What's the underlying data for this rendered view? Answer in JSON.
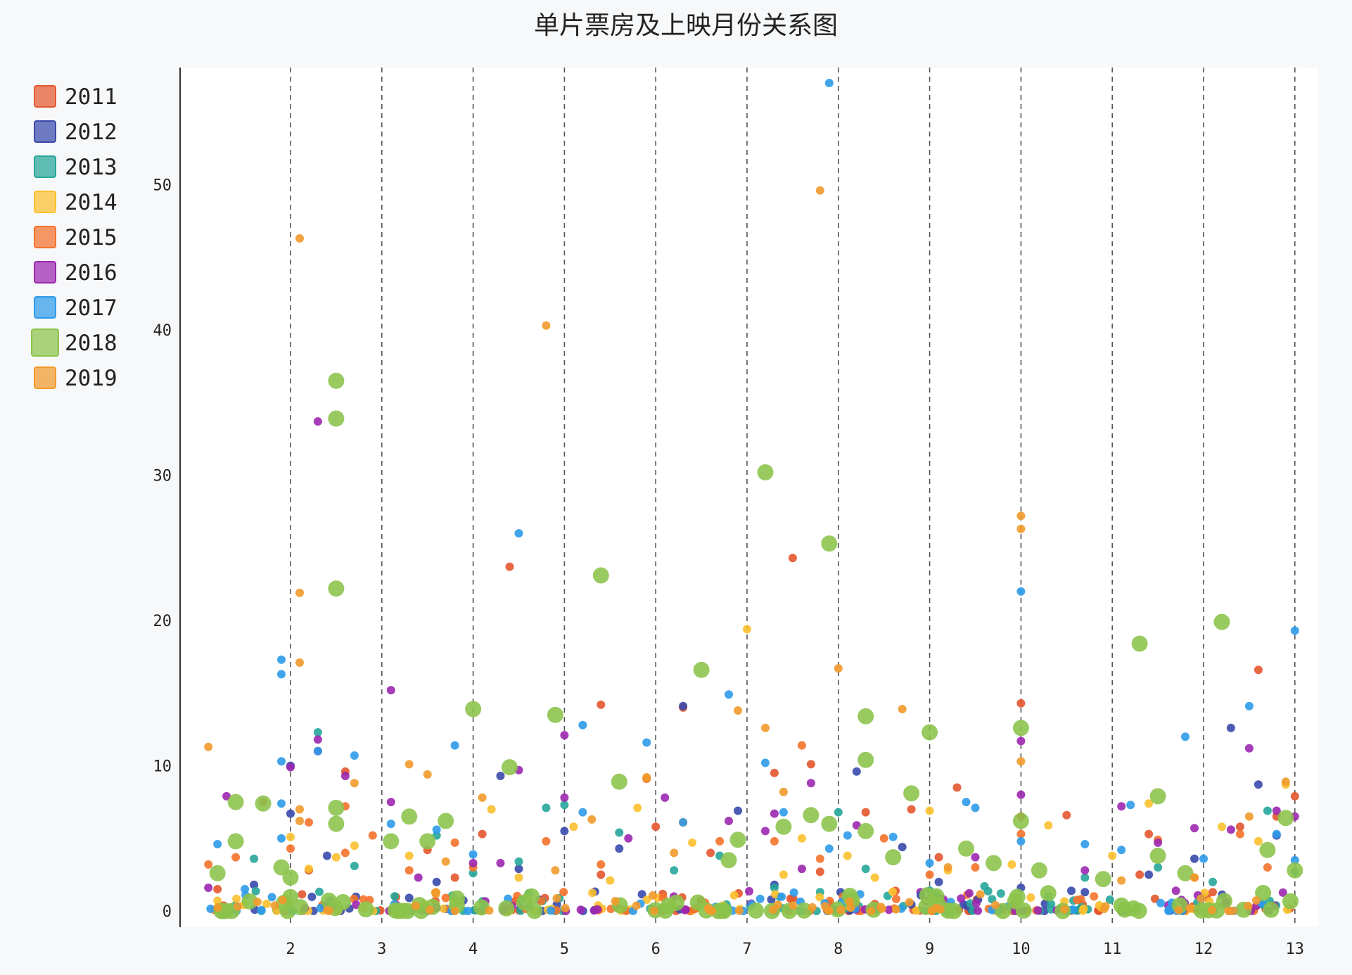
{
  "chart_data": {
    "type": "scatter",
    "title": "单片票房及上映月份关系图",
    "xlabel": "",
    "ylabel": "",
    "xlim": [
      1,
      13.1
    ],
    "ylim": [
      0,
      57.5
    ],
    "x_ticks": [
      2,
      3,
      4,
      5,
      6,
      7,
      8,
      9,
      10,
      11,
      12,
      13
    ],
    "y_ticks": [
      0,
      10,
      20,
      30,
      40,
      50
    ],
    "grid": "vertical dashed",
    "legend_position": "top-left",
    "legend": [
      "2011",
      "2012",
      "2013",
      "2014",
      "2015",
      "2016",
      "2017",
      "2018",
      "2019"
    ],
    "series": [
      {
        "name": "2011",
        "color": "#e4572e",
        "points": [
          [
            1.2,
            1.5
          ],
          [
            1.7,
            7.5
          ],
          [
            2.2,
            2.8
          ],
          [
            2.6,
            9.6
          ],
          [
            3.5,
            4.2
          ],
          [
            3.8,
            2.3
          ],
          [
            4.1,
            5.3
          ],
          [
            4.4,
            23.7
          ],
          [
            5.4,
            2.5
          ],
          [
            5.4,
            14.2
          ],
          [
            6.0,
            5.8
          ],
          [
            6.3,
            14.0
          ],
          [
            6.6,
            4.0
          ],
          [
            7.3,
            9.5
          ],
          [
            7.5,
            24.3
          ],
          [
            7.7,
            10.1
          ],
          [
            7.8,
            2.7
          ],
          [
            8.3,
            6.8
          ],
          [
            8.8,
            7.0
          ],
          [
            9.1,
            3.7
          ],
          [
            9.3,
            8.5
          ],
          [
            10.0,
            14.3
          ],
          [
            10.0,
            6.5
          ],
          [
            10.5,
            6.6
          ],
          [
            11.3,
            2.5
          ],
          [
            11.4,
            5.3
          ],
          [
            12.1,
            1.3
          ],
          [
            12.4,
            5.8
          ],
          [
            12.6,
            16.6
          ],
          [
            12.8,
            6.5
          ],
          [
            13.0,
            7.9
          ]
        ]
      },
      {
        "name": "2012",
        "color": "#3949ab",
        "points": [
          [
            1.6,
            1.8
          ],
          [
            2.0,
            10.0
          ],
          [
            2.0,
            6.7
          ],
          [
            2.4,
            3.8
          ],
          [
            3.3,
            0.9
          ],
          [
            3.6,
            2.0
          ],
          [
            4.3,
            9.3
          ],
          [
            4.5,
            2.9
          ],
          [
            5.0,
            5.5
          ],
          [
            5.6,
            4.3
          ],
          [
            6.3,
            14.1
          ],
          [
            6.9,
            6.9
          ],
          [
            7.3,
            1.8
          ],
          [
            8.2,
            9.6
          ],
          [
            8.7,
            4.4
          ],
          [
            9.1,
            2.0
          ],
          [
            10.0,
            1.6
          ],
          [
            10.7,
            1.3
          ],
          [
            11.4,
            2.5
          ],
          [
            11.9,
            3.6
          ],
          [
            12.3,
            12.6
          ],
          [
            12.6,
            8.7
          ],
          [
            12.8,
            5.2
          ]
        ]
      },
      {
        "name": "2013",
        "color": "#26a69a",
        "points": [
          [
            1.6,
            3.6
          ],
          [
            2.3,
            12.3
          ],
          [
            2.7,
            3.1
          ],
          [
            3.6,
            5.2
          ],
          [
            4.0,
            2.6
          ],
          [
            4.5,
            3.4
          ],
          [
            4.8,
            7.1
          ],
          [
            5.0,
            7.3
          ],
          [
            5.6,
            5.4
          ],
          [
            6.2,
            2.8
          ],
          [
            6.7,
            3.8
          ],
          [
            7.3,
            1.6
          ],
          [
            7.8,
            1.3
          ],
          [
            8.0,
            6.8
          ],
          [
            8.3,
            2.9
          ],
          [
            9.0,
            1.4
          ],
          [
            9.6,
            1.7
          ],
          [
            10.3,
            1.0
          ],
          [
            10.7,
            2.3
          ],
          [
            11.5,
            3.0
          ],
          [
            12.1,
            2.0
          ],
          [
            12.7,
            6.9
          ],
          [
            13.0,
            2.7
          ]
        ]
      },
      {
        "name": "2014",
        "color": "#fbc02d",
        "points": [
          [
            1.2,
            0.7
          ],
          [
            2.0,
            5.1
          ],
          [
            2.2,
            2.9
          ],
          [
            2.5,
            3.7
          ],
          [
            2.7,
            4.5
          ],
          [
            3.3,
            3.8
          ],
          [
            4.2,
            7.0
          ],
          [
            4.5,
            2.3
          ],
          [
            5.1,
            5.8
          ],
          [
            5.5,
            2.1
          ],
          [
            5.8,
            7.1
          ],
          [
            6.4,
            4.7
          ],
          [
            7.0,
            19.4
          ],
          [
            7.4,
            2.5
          ],
          [
            7.6,
            5.0
          ],
          [
            8.1,
            3.8
          ],
          [
            8.4,
            2.3
          ],
          [
            9.0,
            6.9
          ],
          [
            9.2,
            2.8
          ],
          [
            9.9,
            3.2
          ],
          [
            10.3,
            5.9
          ],
          [
            11.0,
            3.8
          ],
          [
            11.4,
            7.4
          ],
          [
            12.2,
            5.8
          ],
          [
            12.6,
            4.8
          ],
          [
            12.9,
            8.7
          ]
        ]
      },
      {
        "name": "2015",
        "color": "#f4722b",
        "points": [
          [
            1.1,
            3.2
          ],
          [
            1.4,
            3.7
          ],
          [
            2.0,
            4.3
          ],
          [
            2.2,
            6.1
          ],
          [
            2.6,
            7.2
          ],
          [
            2.6,
            4.0
          ],
          [
            2.9,
            5.2
          ],
          [
            3.3,
            2.8
          ],
          [
            3.8,
            4.7
          ],
          [
            4.0,
            3.0
          ],
          [
            4.8,
            4.8
          ],
          [
            5.4,
            3.2
          ],
          [
            5.9,
            9.1
          ],
          [
            6.3,
            6.1
          ],
          [
            6.7,
            4.8
          ],
          [
            7.3,
            4.8
          ],
          [
            7.6,
            11.4
          ],
          [
            7.8,
            3.6
          ],
          [
            8.5,
            5.0
          ],
          [
            9.0,
            2.5
          ],
          [
            9.5,
            3.0
          ],
          [
            10.0,
            5.3
          ],
          [
            10.8,
            1.0
          ],
          [
            11.5,
            4.9
          ],
          [
            11.9,
            2.3
          ],
          [
            12.4,
            5.3
          ],
          [
            12.7,
            3.0
          ]
        ]
      },
      {
        "name": "2016",
        "color": "#9c27b0",
        "points": [
          [
            1.1,
            1.6
          ],
          [
            1.3,
            7.9
          ],
          [
            2.0,
            9.9
          ],
          [
            2.3,
            33.7
          ],
          [
            2.3,
            11.8
          ],
          [
            2.3,
            11.0
          ],
          [
            2.6,
            9.3
          ],
          [
            3.1,
            15.2
          ],
          [
            3.1,
            7.5
          ],
          [
            3.4,
            2.3
          ],
          [
            4.0,
            3.3
          ],
          [
            4.3,
            3.3
          ],
          [
            4.5,
            9.7
          ],
          [
            5.0,
            12.1
          ],
          [
            5.0,
            7.8
          ],
          [
            5.7,
            5.0
          ],
          [
            6.1,
            7.8
          ],
          [
            6.8,
            6.2
          ],
          [
            7.2,
            5.5
          ],
          [
            7.3,
            6.7
          ],
          [
            7.6,
            2.9
          ],
          [
            7.7,
            8.8
          ],
          [
            8.2,
            5.9
          ],
          [
            8.9,
            1.3
          ],
          [
            9.5,
            3.7
          ],
          [
            10.0,
            11.7
          ],
          [
            10.0,
            8.0
          ],
          [
            10.7,
            2.8
          ],
          [
            11.1,
            7.2
          ],
          [
            11.5,
            4.7
          ],
          [
            11.9,
            5.7
          ],
          [
            12.3,
            5.6
          ],
          [
            12.5,
            11.2
          ],
          [
            12.8,
            6.9
          ],
          [
            13.0,
            6.5
          ]
        ]
      },
      {
        "name": "2017",
        "color": "#2e9bea",
        "points": [
          [
            1.2,
            4.6
          ],
          [
            1.5,
            1.5
          ],
          [
            1.9,
            17.3
          ],
          [
            1.9,
            16.3
          ],
          [
            1.9,
            10.3
          ],
          [
            1.9,
            7.4
          ],
          [
            1.9,
            5.0
          ],
          [
            2.3,
            11.0
          ],
          [
            2.7,
            10.7
          ],
          [
            3.1,
            6.0
          ],
          [
            3.6,
            5.6
          ],
          [
            3.8,
            11.4
          ],
          [
            4.0,
            3.9
          ],
          [
            4.5,
            26.0
          ],
          [
            5.2,
            12.8
          ],
          [
            5.2,
            6.8
          ],
          [
            5.9,
            11.6
          ],
          [
            6.3,
            6.1
          ],
          [
            6.8,
            14.9
          ],
          [
            7.2,
            10.2
          ],
          [
            7.4,
            6.8
          ],
          [
            7.9,
            57.0
          ],
          [
            7.9,
            4.3
          ],
          [
            8.1,
            5.2
          ],
          [
            8.6,
            5.1
          ],
          [
            9.0,
            3.3
          ],
          [
            9.4,
            7.5
          ],
          [
            9.5,
            7.1
          ],
          [
            10.0,
            22.0
          ],
          [
            10.0,
            4.8
          ],
          [
            10.7,
            4.6
          ],
          [
            11.1,
            4.2
          ],
          [
            11.2,
            7.3
          ],
          [
            11.8,
            12.0
          ],
          [
            12.0,
            3.6
          ],
          [
            12.5,
            14.1
          ],
          [
            12.8,
            5.3
          ],
          [
            13.0,
            19.3
          ],
          [
            13.0,
            3.5
          ]
        ]
      },
      {
        "name": "2018",
        "color": "#8bc34a",
        "points": [
          [
            1.2,
            2.6
          ],
          [
            1.4,
            4.8
          ],
          [
            1.4,
            7.5
          ],
          [
            1.7,
            7.4
          ],
          [
            1.9,
            3.0
          ],
          [
            2.0,
            2.3
          ],
          [
            2.5,
            36.5
          ],
          [
            2.5,
            33.9
          ],
          [
            2.5,
            22.2
          ],
          [
            2.5,
            7.1
          ],
          [
            2.5,
            6.0
          ],
          [
            3.1,
            4.8
          ],
          [
            3.3,
            6.5
          ],
          [
            3.5,
            4.8
          ],
          [
            3.7,
            6.2
          ],
          [
            4.0,
            13.9
          ],
          [
            4.4,
            9.9
          ],
          [
            4.9,
            13.5
          ],
          [
            5.4,
            23.1
          ],
          [
            5.6,
            8.9
          ],
          [
            6.5,
            16.6
          ],
          [
            6.8,
            3.5
          ],
          [
            6.9,
            4.9
          ],
          [
            7.2,
            30.2
          ],
          [
            7.4,
            5.8
          ],
          [
            7.7,
            6.6
          ],
          [
            7.9,
            25.3
          ],
          [
            7.9,
            6.0
          ],
          [
            8.3,
            13.4
          ],
          [
            8.3,
            10.4
          ],
          [
            8.3,
            5.5
          ],
          [
            8.6,
            3.7
          ],
          [
            8.8,
            8.1
          ],
          [
            9.0,
            12.3
          ],
          [
            9.4,
            4.3
          ],
          [
            9.7,
            3.3
          ],
          [
            10.0,
            12.6
          ],
          [
            10.0,
            6.2
          ],
          [
            10.2,
            2.8
          ],
          [
            10.9,
            2.2
          ],
          [
            11.3,
            18.4
          ],
          [
            11.5,
            7.9
          ],
          [
            11.5,
            3.8
          ],
          [
            11.8,
            2.6
          ],
          [
            12.2,
            19.9
          ],
          [
            12.7,
            4.2
          ],
          [
            12.9,
            6.4
          ],
          [
            13.0,
            2.8
          ]
        ]
      },
      {
        "name": "2019",
        "color": "#f19a2b",
        "points": [
          [
            1.1,
            11.3
          ],
          [
            2.1,
            46.3
          ],
          [
            2.1,
            21.9
          ],
          [
            2.1,
            17.1
          ],
          [
            2.1,
            7.0
          ],
          [
            2.1,
            6.2
          ],
          [
            2.7,
            8.8
          ],
          [
            3.3,
            10.1
          ],
          [
            3.5,
            9.4
          ],
          [
            3.7,
            3.4
          ],
          [
            4.1,
            7.8
          ],
          [
            4.8,
            40.3
          ],
          [
            4.9,
            2.8
          ],
          [
            5.3,
            6.3
          ],
          [
            5.9,
            9.2
          ],
          [
            6.2,
            4.0
          ],
          [
            6.9,
            13.8
          ],
          [
            7.2,
            12.6
          ],
          [
            7.4,
            8.2
          ],
          [
            7.8,
            49.6
          ],
          [
            8.0,
            16.7
          ],
          [
            8.7,
            13.9
          ],
          [
            9.2,
            3.0
          ],
          [
            10.0,
            27.2
          ],
          [
            10.0,
            26.3
          ],
          [
            10.0,
            10.3
          ],
          [
            11.1,
            2.1
          ],
          [
            11.9,
            2.3
          ],
          [
            12.5,
            6.5
          ],
          [
            12.9,
            8.9
          ]
        ]
      }
    ]
  }
}
